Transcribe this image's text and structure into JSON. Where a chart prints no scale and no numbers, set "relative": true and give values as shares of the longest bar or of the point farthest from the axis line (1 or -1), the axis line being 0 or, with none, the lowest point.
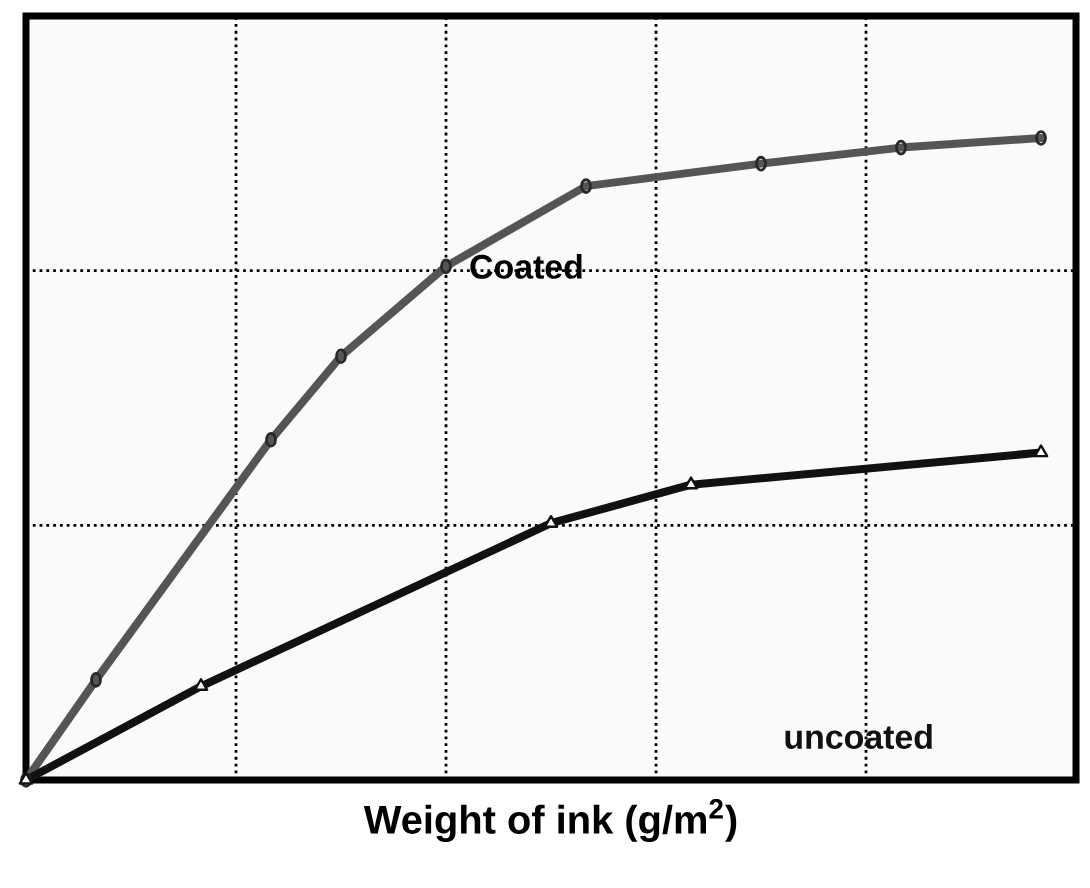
{
  "chart_data": {
    "type": "line",
    "xlabel": "Weight of ink (g/m$^{2}$)",
    "relative": true,
    "grid": true,
    "categories": [
      null,
      null,
      null,
      null,
      null,
      null,
      null,
      null,
      null,
      null,
      null,
      null,
      null,
      null,
      null,
      null,
      null,
      null,
      null,
      null,
      null,
      null,
      null,
      null,
      null,
      null,
      null,
      null,
      null,
      null,
      null
    ],
    "series": [
      {
        "name": "Coated",
        "color": "#555555",
        "marker": "circle",
        "values": [
          0,
          null,
          0.156,
          null,
          null,
          null,
          null,
          0.53,
          null,
          0.66,
          null,
          null,
          0.8,
          null,
          null,
          null,
          0.925,
          null,
          null,
          null,
          null,
          0.96,
          null,
          null,
          null,
          0.985,
          null,
          null,
          null,
          1,
          null
        ]
      },
      {
        "name": "uncoated",
        "color": "#111111",
        "marker": "triangle",
        "values": [
          0,
          null,
          null,
          null,
          null,
          0.146,
          null,
          null,
          null,
          null,
          null,
          null,
          null,
          null,
          null,
          0.4,
          null,
          null,
          null,
          0.46,
          null,
          null,
          null,
          null,
          null,
          null,
          null,
          null,
          null,
          0.51,
          null
        ]
      }
    ]
  }
}
